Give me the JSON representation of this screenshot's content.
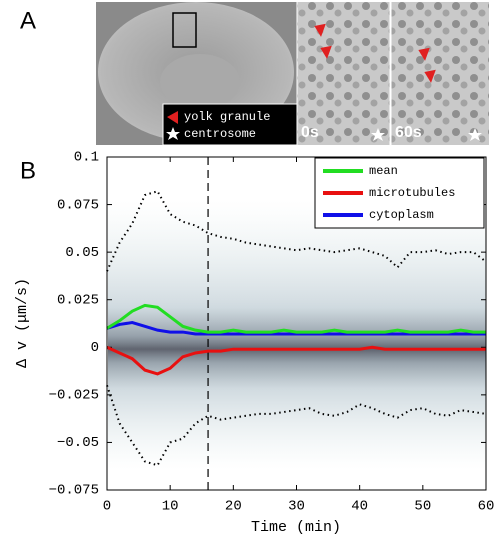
{
  "panels": {
    "a": {
      "label": "A",
      "legend": [
        "yolk granule",
        "centrosome"
      ],
      "frames": [
        "0s",
        "60s"
      ]
    },
    "b": {
      "label": "B"
    }
  },
  "chart_data": {
    "type": "line",
    "xlabel": "Time (min)",
    "ylabel": "Δ v (μm/s)",
    "xlim": [
      0,
      60
    ],
    "xticks": [
      0,
      10,
      20,
      30,
      40,
      50,
      60
    ],
    "ylim": [
      -0.075,
      0.1
    ],
    "yticks": [
      {
        "value": -0.075,
        "label": "−0.075"
      },
      {
        "value": -0.05,
        "label": "−0.05"
      },
      {
        "value": -0.025,
        "label": "−0.025"
      },
      0,
      0.025,
      0.05,
      0.075,
      0.1
    ],
    "vline": 16,
    "x": [
      0,
      2,
      4,
      6,
      8,
      10,
      12,
      14,
      16,
      18,
      20,
      22,
      24,
      26,
      28,
      30,
      32,
      34,
      36,
      38,
      40,
      42,
      44,
      46,
      48,
      50,
      52,
      54,
      56,
      58,
      60
    ],
    "series": [
      {
        "color": "#000000",
        "dotted": true,
        "values": [
          0.04,
          0.055,
          0.065,
          0.08,
          0.082,
          0.07,
          0.066,
          0.064,
          0.06,
          0.058,
          0.057,
          0.055,
          0.054,
          0.053,
          0.052,
          0.051,
          0.052,
          0.051,
          0.05,
          0.051,
          0.052,
          0.05,
          0.048,
          0.042,
          0.05,
          0.05,
          0.051,
          0.049,
          0.05,
          0.05,
          0.045
        ]
      },
      {
        "color": "#000000",
        "dotted": true,
        "values": [
          -0.02,
          -0.04,
          -0.05,
          -0.06,
          -0.062,
          -0.05,
          -0.048,
          -0.04,
          -0.036,
          -0.038,
          -0.037,
          -0.036,
          -0.035,
          -0.035,
          -0.034,
          -0.033,
          -0.032,
          -0.035,
          -0.036,
          -0.034,
          -0.03,
          -0.032,
          -0.035,
          -0.037,
          -0.033,
          -0.032,
          -0.035,
          -0.036,
          -0.033,
          -0.034,
          -0.035
        ]
      },
      {
        "name": "cytoplasm",
        "color": "#1010e8",
        "values": [
          0.01,
          0.012,
          0.013,
          0.011,
          0.009,
          0.008,
          0.008,
          0.007,
          0.007,
          0.007,
          0.007,
          0.007,
          0.007,
          0.007,
          0.007,
          0.007,
          0.007,
          0.007,
          0.007,
          0.007,
          0.007,
          0.007,
          0.007,
          0.007,
          0.007,
          0.007,
          0.007,
          0.007,
          0.007,
          0.007,
          0.007
        ]
      },
      {
        "name": "microtubules",
        "color": "#e81010",
        "values": [
          0.0,
          -0.003,
          -0.006,
          -0.012,
          -0.014,
          -0.011,
          -0.005,
          -0.003,
          -0.002,
          -0.002,
          -0.001,
          -0.001,
          -0.001,
          -0.001,
          -0.001,
          -0.001,
          -0.001,
          -0.001,
          -0.001,
          -0.001,
          -0.001,
          0.0,
          -0.001,
          -0.001,
          -0.001,
          -0.001,
          -0.001,
          -0.001,
          -0.001,
          -0.001,
          -0.001
        ]
      },
      {
        "name": "mean",
        "color": "#22dd22",
        "values": [
          0.01,
          0.014,
          0.019,
          0.022,
          0.021,
          0.016,
          0.011,
          0.009,
          0.008,
          0.008,
          0.009,
          0.008,
          0.008,
          0.008,
          0.009,
          0.008,
          0.008,
          0.008,
          0.009,
          0.008,
          0.008,
          0.008,
          0.008,
          0.009,
          0.008,
          0.008,
          0.008,
          0.008,
          0.009,
          0.008,
          0.008
        ]
      }
    ],
    "legend_order": [
      4,
      3,
      2
    ]
  }
}
